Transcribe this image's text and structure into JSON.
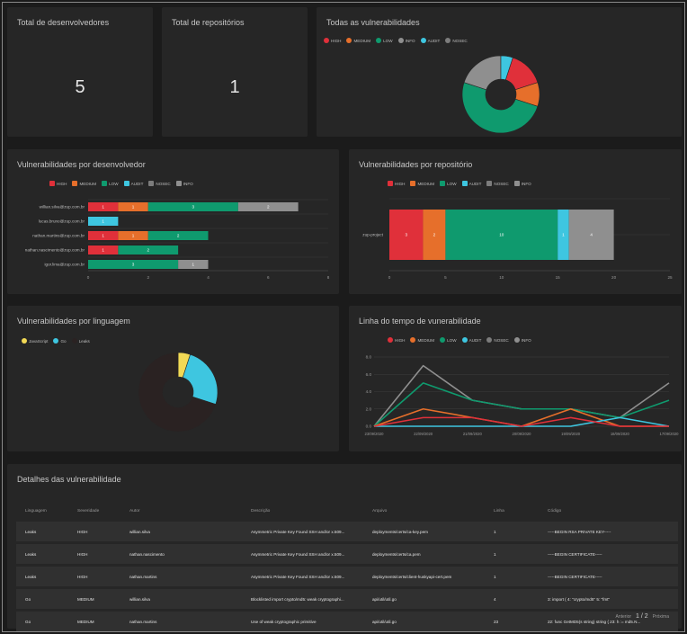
{
  "colors": {
    "HIGH": "#e0303a",
    "MEDIUM": "#e66f2b",
    "LOW": "#0f9a6e",
    "AUDIT": "#3ec6e0",
    "NOSEC": "#7c7c7c",
    "INFO": "#8f8f8f",
    "JavaScript": "#f2d955",
    "Go": "#3ec6e0",
    "Leaks": "#2a2222"
  },
  "stats": {
    "devs_title": "Total de desenvolvedores",
    "devs_value": "5",
    "repos_title": "Total de repositórios",
    "repos_value": "1"
  },
  "all_vulns": {
    "title": "Todas as vulnerabilidades",
    "legend": [
      "HIGH",
      "MEDIUM",
      "LOW",
      "INFO",
      "AUDIT",
      "NOSEC"
    ]
  },
  "by_dev": {
    "title": "Vulnerabilidades por desenvolvedor",
    "legend": [
      "HIGH",
      "MEDIUM",
      "LOW",
      "AUDIT",
      "NOSEC",
      "INFO"
    ]
  },
  "by_repo": {
    "title": "Vulnerabilidades por repositório",
    "legend": [
      "HIGH",
      "MEDIUM",
      "LOW",
      "AUDIT",
      "NOSEC",
      "INFO"
    ]
  },
  "by_lang": {
    "title": "Vulnerabilidades por linguagem",
    "legend": [
      "JavaScript",
      "Go",
      "Leaks"
    ]
  },
  "timeline": {
    "title": "Linha do tempo de vunerabilidade",
    "legend": [
      "HIGH",
      "MEDIUM",
      "LOW",
      "AUDIT",
      "NOSEC",
      "INFO"
    ]
  },
  "chart_data": [
    {
      "type": "pie",
      "categories": [
        "HIGH",
        "MEDIUM",
        "LOW",
        "INFO",
        "AUDIT"
      ],
      "values": [
        3,
        2,
        10,
        4,
        1
      ]
    },
    {
      "type": "bar",
      "categories": [
        "willian.silva@zup.com.br",
        "lucas.bruno@zup.com.br",
        "nathan.martins@zup.com.br",
        "nathan.nascimento@zup.com.br",
        "igor.lima@zup.com.br"
      ],
      "series": [
        {
          "name": "HIGH",
          "values": [
            1,
            0,
            1,
            1,
            0
          ]
        },
        {
          "name": "MEDIUM",
          "values": [
            1,
            0,
            1,
            0,
            0
          ]
        },
        {
          "name": "LOW",
          "values": [
            3,
            0,
            2,
            2,
            3
          ]
        },
        {
          "name": "AUDIT",
          "values": [
            0,
            1,
            0,
            0,
            0
          ]
        },
        {
          "name": "INFO",
          "values": [
            2,
            0,
            0,
            0,
            1
          ]
        }
      ],
      "xlim": [
        0,
        8
      ],
      "xticks": [
        "0",
        "2",
        "4",
        "6",
        "8"
      ]
    },
    {
      "type": "bar",
      "categories": [
        "zup-project"
      ],
      "series": [
        {
          "name": "HIGH",
          "values": [
            3
          ]
        },
        {
          "name": "MEDIUM",
          "values": [
            2
          ]
        },
        {
          "name": "LOW",
          "values": [
            10
          ]
        },
        {
          "name": "AUDIT",
          "values": [
            1
          ]
        },
        {
          "name": "INFO",
          "values": [
            4
          ]
        }
      ],
      "xlim": [
        0,
        25
      ],
      "xticks": [
        "0",
        "5",
        "10",
        "15",
        "20",
        "25"
      ]
    },
    {
      "type": "pie",
      "categories": [
        "JavaScript",
        "Go",
        "Leaks"
      ],
      "values": [
        1,
        5,
        14
      ]
    },
    {
      "type": "line",
      "x": [
        "23/09/2020",
        "22/09/2020",
        "21/09/2020",
        "20/09/2020",
        "19/09/2020",
        "18/09/2020",
        "17/09/2020"
      ],
      "series": [
        {
          "name": "HIGH",
          "values": [
            0,
            1,
            1,
            0,
            1,
            0,
            0
          ]
        },
        {
          "name": "MEDIUM",
          "values": [
            0,
            2,
            1,
            0,
            2,
            0,
            0
          ]
        },
        {
          "name": "LOW",
          "values": [
            0,
            5,
            3,
            2,
            2,
            1,
            3
          ]
        },
        {
          "name": "AUDIT",
          "values": [
            0,
            0,
            0,
            0,
            0,
            1,
            0
          ]
        },
        {
          "name": "INFO",
          "values": [
            0,
            7,
            3,
            2,
            2,
            1,
            5
          ]
        }
      ],
      "ylim": [
        0,
        8
      ],
      "yticks": [
        "0.0",
        "2.0",
        "4.0",
        "6.0",
        "8.0"
      ]
    }
  ],
  "details": {
    "title": "Detalhes das vulnerabilidade",
    "headers": [
      "Linguagem",
      "Severidade",
      "Autor",
      "Descrição",
      "Arquivo",
      "Linha",
      "Código"
    ],
    "rows": [
      [
        "Leaks",
        "HIGH",
        "willian.silva",
        "Asymmetric Private Key Found SSH and/or x.509...",
        "deployments/certs/ca-key.pem",
        "1",
        "-----BEGIN RSA PRIVATE KEY-----"
      ],
      [
        "Leaks",
        "HIGH",
        "nathan.nascimento",
        "Asymmetric Private Key Found SSH and/or x.509...",
        "deployments/certs/ca.pem",
        "1",
        "-----BEGIN CERTIFICATE-----"
      ],
      [
        "Leaks",
        "HIGH",
        "nathan.martins",
        "Asymmetric Private Key Found SSH and/or x.509...",
        "deployments/certs/client-huskyapi-cert.pem",
        "1",
        "-----BEGIN CERTIFICATE-----"
      ],
      [
        "Go",
        "MEDIUM",
        "willian.silva",
        "Blocklisted import crypto/md5: weak cryptographi...",
        "api/util/util.go",
        "4",
        "3: import ( 4: \"crypto/md5\" 5: \"fmt\""
      ],
      [
        "Go",
        "MEDIUM",
        "nathan.martins",
        "Use of weak cryptographic primitive",
        "api/util/util.go",
        "23",
        "22: func GetMD5(s string) string { 23: h := md5.N..."
      ]
    ],
    "pager_prev": "Anterior",
    "pager_pages": "1 / 2",
    "pager_next": "Próxima"
  }
}
